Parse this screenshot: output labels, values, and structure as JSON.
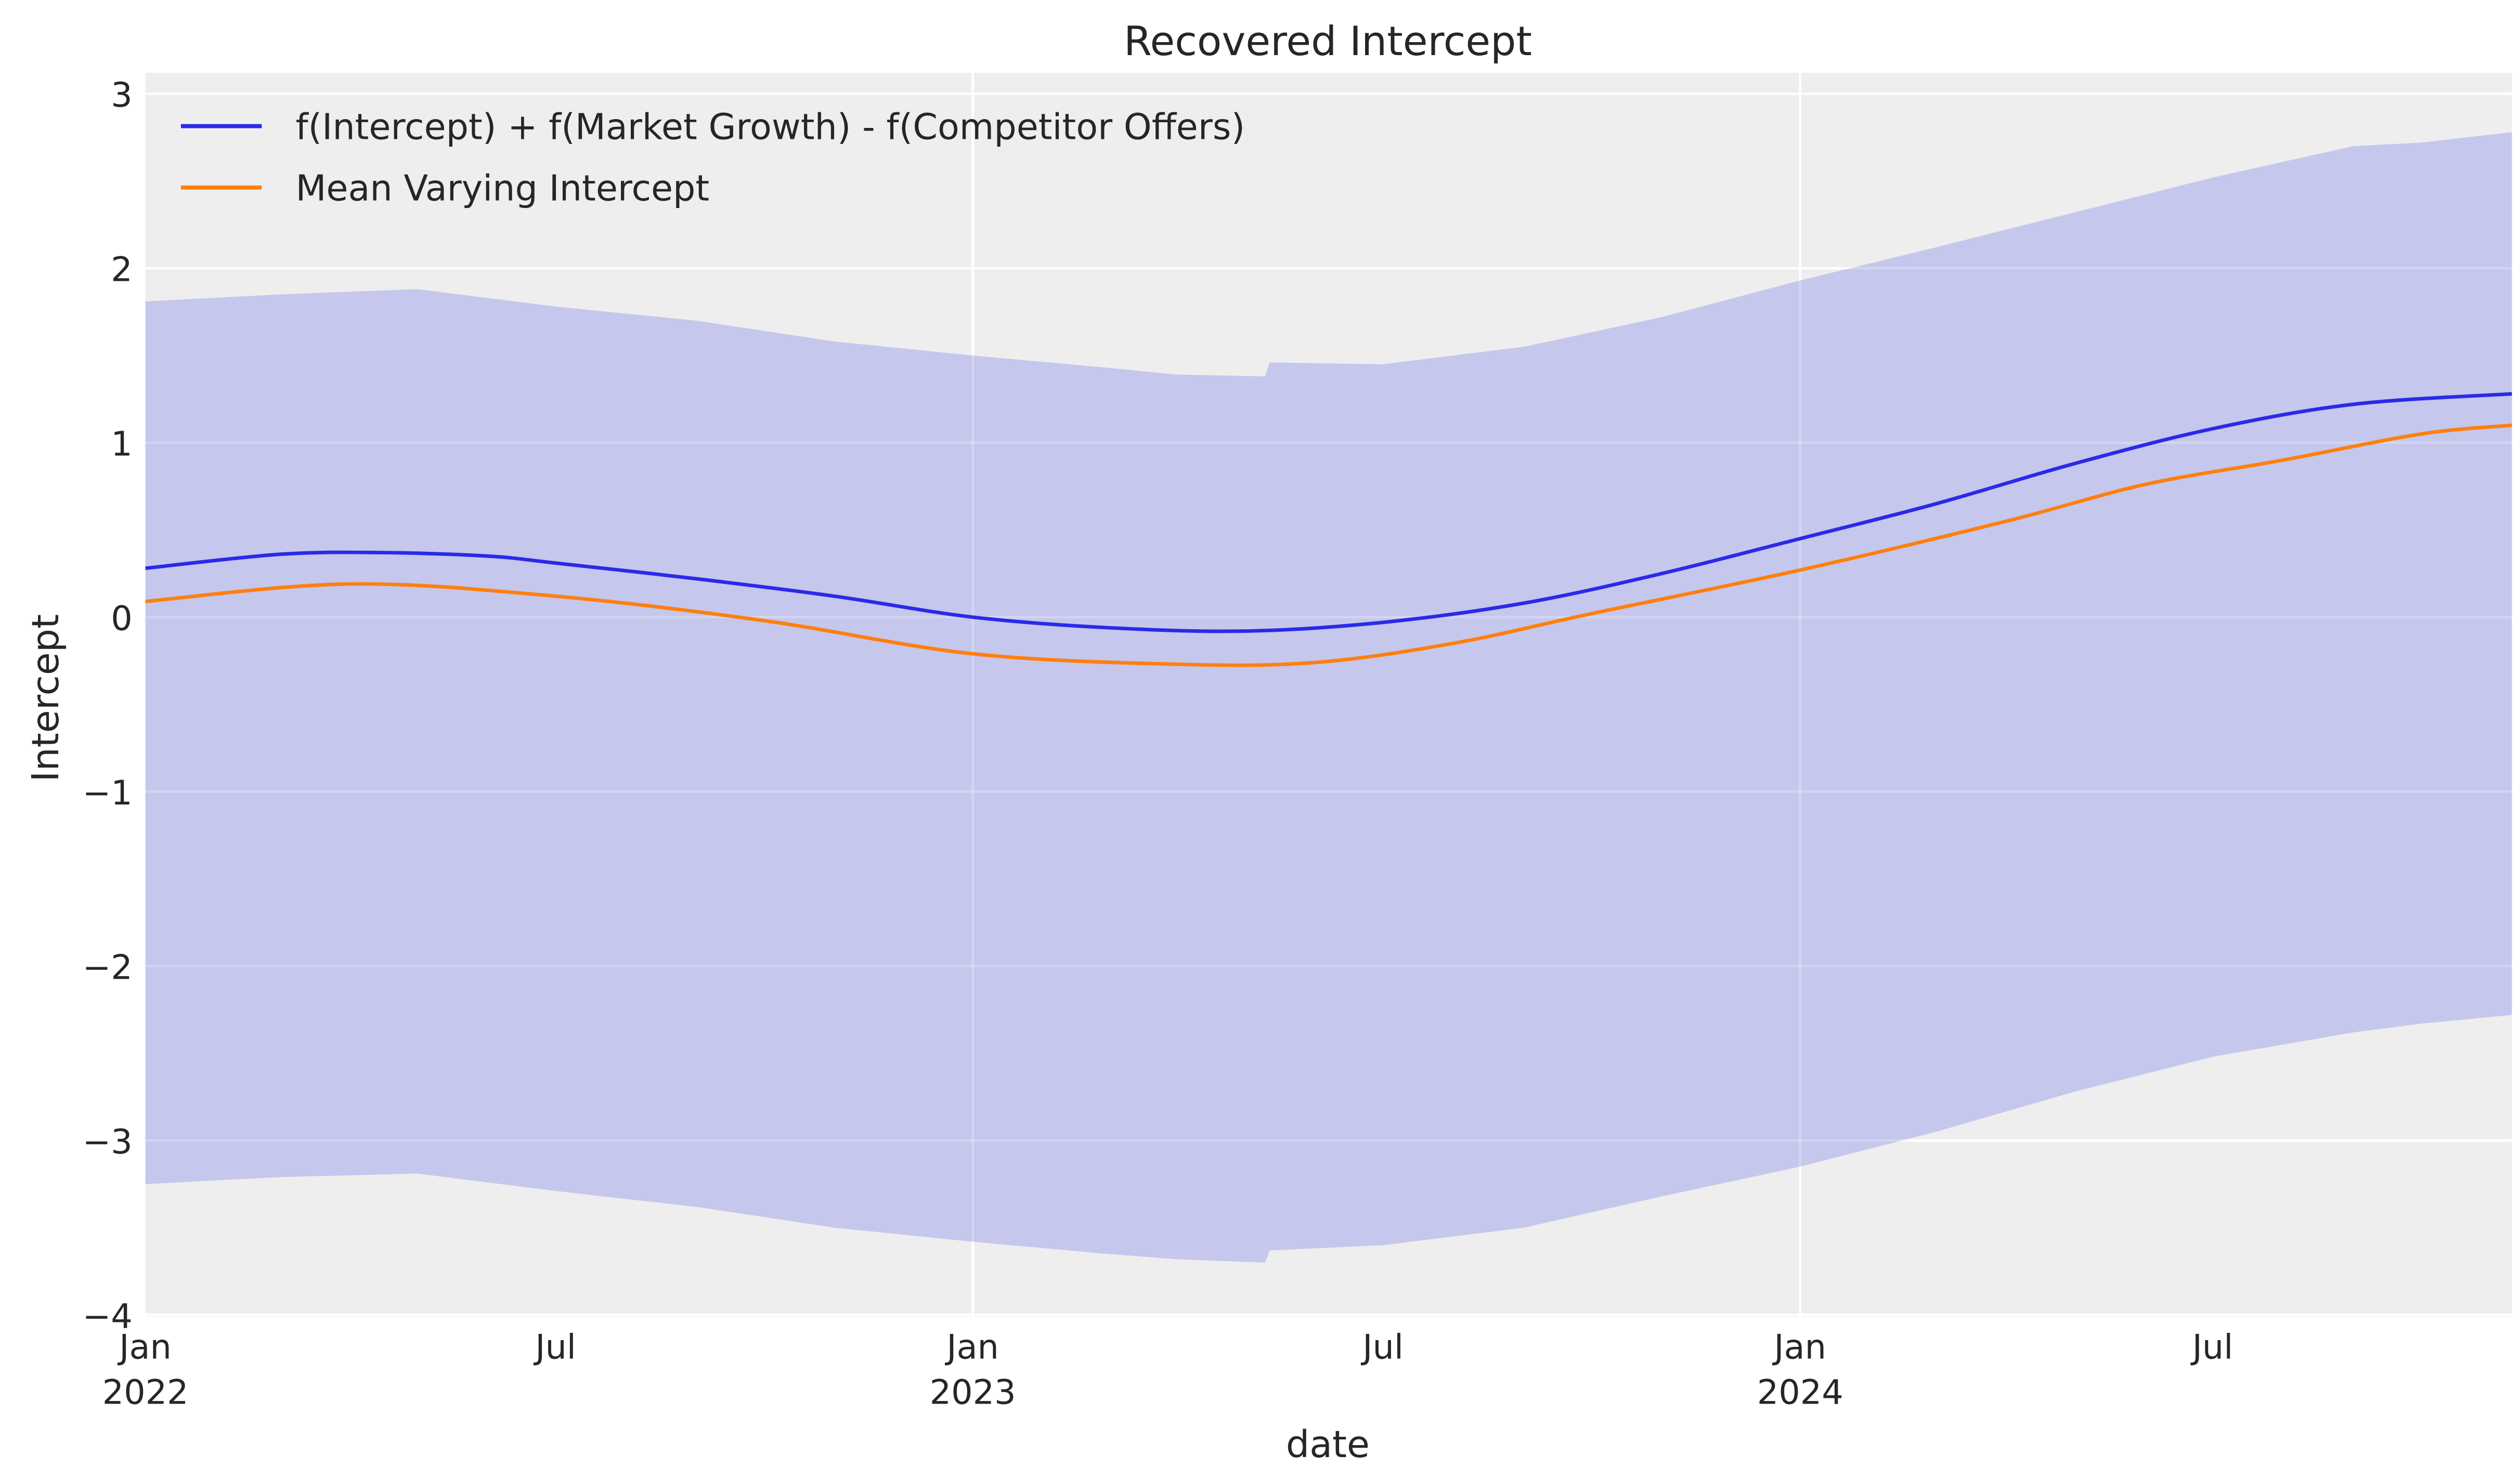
{
  "chart_data": {
    "type": "line",
    "title": "Recovered Intercept",
    "xlabel": "date",
    "ylabel": "Intercept",
    "xlim": [
      "2022-01-01",
      "2024-11-10"
    ],
    "ylim": [
      -4.01,
      3.12
    ],
    "grid": true,
    "legend_position": "top-left",
    "yticks": [
      "3",
      "2",
      "1",
      "0",
      "−1",
      "−2",
      "−3",
      "−4"
    ],
    "ytick_values": [
      3,
      2,
      1,
      0,
      -1,
      -2,
      -3,
      -4
    ],
    "xticks": [
      {
        "date": "2022-01-01",
        "label": "Jan",
        "year": "2022"
      },
      {
        "date": "2022-07-01",
        "label": "Jul",
        "year": ""
      },
      {
        "date": "2023-01-01",
        "label": "Jan",
        "year": "2023"
      },
      {
        "date": "2023-07-01",
        "label": "Jul",
        "year": ""
      },
      {
        "date": "2024-01-01",
        "label": "Jan",
        "year": "2024"
      },
      {
        "date": "2024-07-01",
        "label": "Jul",
        "year": ""
      }
    ],
    "series": [
      {
        "name": "f(Intercept) + f(Market Growth) - f(Competitor Offers)",
        "color": "#2a2ae8",
        "x": [
          "2022-01-01",
          "2022-03-01",
          "2022-04-15",
          "2022-06-01",
          "2022-07-01",
          "2022-09-01",
          "2022-11-01",
          "2023-01-01",
          "2023-03-01",
          "2023-05-01",
          "2023-07-01",
          "2023-09-01",
          "2023-11-01",
          "2024-01-01",
          "2024-03-01",
          "2024-05-01",
          "2024-07-01",
          "2024-09-01",
          "2024-11-10"
        ],
        "y": [
          0.28,
          0.36,
          0.37,
          0.35,
          0.31,
          0.22,
          0.12,
          0.0,
          -0.06,
          -0.08,
          -0.03,
          0.08,
          0.25,
          0.45,
          0.65,
          0.88,
          1.08,
          1.22,
          1.28
        ]
      },
      {
        "name": "Mean Varying Intercept",
        "color": "#ff7f0e",
        "x": [
          "2022-01-01",
          "2022-04-01",
          "2022-07-01",
          "2022-10-01",
          "2023-01-01",
          "2023-04-01",
          "2023-06-01",
          "2023-08-01",
          "2023-10-01",
          "2024-01-01",
          "2024-04-01",
          "2024-06-01",
          "2024-08-01",
          "2024-10-01",
          "2024-11-10"
        ],
        "y": [
          0.09,
          0.19,
          0.12,
          -0.02,
          -0.21,
          -0.27,
          -0.26,
          -0.15,
          0.02,
          0.27,
          0.55,
          0.76,
          0.9,
          1.05,
          1.1
        ]
      }
    ],
    "band": {
      "color": "#c5c7ec",
      "x": [
        "2022-01-01",
        "2022-03-01",
        "2022-05-01",
        "2022-07-01",
        "2022-09-01",
        "2022-11-01",
        "2023-01-01",
        "2023-03-01",
        "2023-04-01",
        "2023-05-10",
        "2023-05-12",
        "2023-07-01",
        "2023-09-01",
        "2023-11-01",
        "2024-01-01",
        "2024-03-01",
        "2024-05-01",
        "2024-07-01",
        "2024-09-01",
        "2024-10-01",
        "2024-11-10"
      ],
      "upper": [
        1.81,
        1.85,
        1.88,
        1.78,
        1.7,
        1.58,
        1.5,
        1.43,
        1.39,
        1.38,
        1.46,
        1.45,
        1.55,
        1.72,
        1.93,
        2.12,
        2.32,
        2.52,
        2.7,
        2.72,
        2.78
      ],
      "lower": [
        -3.25,
        -3.21,
        -3.19,
        -3.29,
        -3.38,
        -3.5,
        -3.58,
        -3.65,
        -3.68,
        -3.7,
        -3.63,
        -3.6,
        -3.5,
        -3.32,
        -3.15,
        -2.95,
        -2.72,
        -2.52,
        -2.38,
        -2.33,
        -2.28
      ]
    }
  }
}
